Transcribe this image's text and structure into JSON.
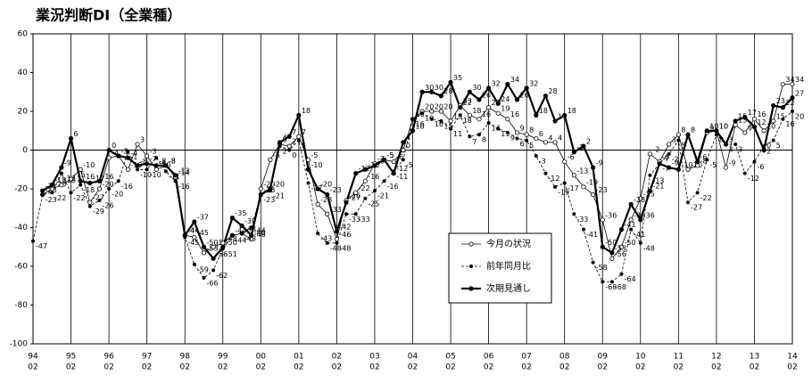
{
  "chart_data": {
    "type": "line",
    "title": "業況判断DI（全業種）",
    "categories": [
      [
        "94",
        "02"
      ],
      null,
      null,
      null,
      [
        "95",
        "02"
      ],
      null,
      null,
      null,
      [
        "96",
        "02"
      ],
      null,
      null,
      null,
      [
        "97",
        "02"
      ],
      null,
      null,
      null,
      [
        "98",
        "02"
      ],
      null,
      null,
      null,
      [
        "99",
        "02"
      ],
      null,
      null,
      null,
      [
        "00",
        "02"
      ],
      null,
      null,
      null,
      [
        "01",
        "02"
      ],
      null,
      null,
      null,
      [
        "02",
        "02"
      ],
      null,
      null,
      null,
      [
        "03",
        "02"
      ],
      null,
      null,
      null,
      [
        "04",
        "02"
      ],
      null,
      null,
      null,
      [
        "05",
        "02"
      ],
      null,
      null,
      null,
      [
        "06",
        "02"
      ],
      null,
      null,
      null,
      [
        "07",
        "02"
      ],
      null,
      null,
      null,
      [
        "08",
        "02"
      ],
      null,
      null,
      null,
      [
        "09",
        "02"
      ],
      null,
      null,
      null,
      [
        "10",
        "02"
      ],
      null,
      null,
      null,
      [
        "11",
        "02"
      ],
      null,
      null,
      null,
      [
        "12",
        "02"
      ],
      null,
      null,
      null,
      [
        "13",
        "02"
      ],
      null,
      null,
      null,
      [
        "14",
        "02"
      ]
    ],
    "series": [
      {
        "name": "今月の状況",
        "color": "#000000",
        "line": "thin",
        "marker": "open",
        "values": [
          null,
          -23,
          -20,
          -18,
          -15,
          -10,
          -27,
          -20,
          -4,
          -3,
          -10,
          3,
          -3,
          -10,
          -8,
          -14,
          -44,
          -45,
          -53,
          -50,
          -48,
          -44,
          -43,
          -46,
          -20,
          -5,
          3,
          2,
          7,
          -5,
          -28,
          -33,
          -46,
          -26,
          -22,
          -16,
          -7,
          -5,
          -6,
          0,
          16,
          20,
          20,
          20,
          15,
          23,
          18,
          16,
          22,
          19,
          16,
          9,
          8,
          6,
          4,
          4,
          -6,
          -13,
          -19,
          -23,
          -36,
          -56,
          -50,
          -36,
          -25,
          -2,
          -6,
          3,
          8,
          -10,
          -8,
          9,
          10,
          -9,
          13,
          9,
          16,
          10,
          15,
          34,
          34
        ]
      },
      {
        "name": "前年同月比",
        "color": "#000000",
        "line": "dashed",
        "marker": "dot",
        "values": [
          -47,
          -23,
          -22,
          -12,
          -22,
          -18,
          -29,
          -26,
          -20,
          -16,
          -1,
          -10,
          -10,
          -4,
          -11,
          -16,
          -45,
          -59,
          -66,
          -62,
          -51,
          -44,
          -43,
          -40,
          -23,
          -21,
          2,
          0,
          5,
          -17,
          -43,
          -48,
          -48,
          -33,
          -33,
          -25,
          -21,
          -16,
          -11,
          -5,
          16,
          19,
          16,
          15,
          11,
          18,
          7,
          8,
          14,
          11,
          9,
          6,
          5,
          -3,
          -12,
          -19,
          -17,
          -33,
          -41,
          -58,
          -68,
          -68,
          -64,
          -41,
          -48,
          -13,
          -7,
          -2,
          5,
          -27,
          -22,
          -5,
          8,
          3,
          3,
          -12,
          -6,
          2,
          5,
          16,
          20
        ]
      },
      {
        "name": "次期見通し",
        "color": "#000000",
        "line": "bold",
        "marker": "dot",
        "values": [
          null,
          -21,
          -18,
          -9,
          6,
          -16,
          -17,
          -16,
          0,
          -3,
          -4,
          -8,
          -7,
          -8,
          -8,
          -13,
          -44,
          -37,
          -50,
          -56,
          -50,
          -35,
          -39,
          -44,
          -23,
          -20,
          4,
          7,
          18,
          -10,
          -20,
          -23,
          -42,
          -27,
          -12,
          -10,
          -8,
          -5,
          -12,
          4,
          10,
          30,
          30,
          28,
          35,
          22,
          30,
          26,
          32,
          24,
          34,
          26,
          32,
          18,
          28,
          15,
          18,
          -1,
          2,
          -9,
          -50,
          -53,
          -41,
          -28,
          -36,
          -21,
          -7,
          -9,
          -10,
          8,
          -6,
          10,
          10,
          3,
          15,
          17,
          12,
          0,
          23,
          22,
          27
        ]
      }
    ],
    "ylim": [
      -100,
      60
    ],
    "yticks": [
      -100,
      -80,
      -60,
      -40,
      -20,
      0,
      20,
      40,
      60
    ],
    "grid": true
  }
}
